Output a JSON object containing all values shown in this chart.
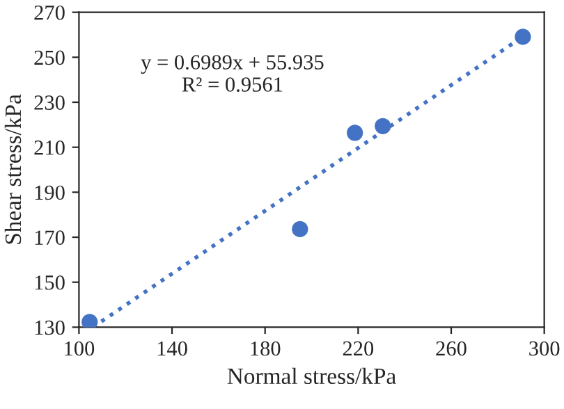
{
  "chart_data": {
    "type": "scatter",
    "xlabel": "Normal stress/kPa",
    "ylabel": "Shear stress/kPa",
    "annotations": [
      "y = 0.6989x + 55.935\nR² = 0.9561"
    ],
    "xlim": [
      100,
      300
    ],
    "xticks": [
      100,
      140,
      180,
      220,
      260,
      300
    ],
    "ylim": [
      130,
      270
    ],
    "yticks": [
      130,
      150,
      170,
      190,
      210,
      230,
      250,
      270
    ],
    "grid": false,
    "marker": "circle",
    "series": [
      {
        "color": "#4472c4",
        "x": [
          104.6,
          195,
          218.6,
          230.6,
          290.8
        ],
        "values": [
          132.3,
          173.6,
          216.4,
          219.4,
          259.1
        ]
      },
      {
        "type": "line",
        "color": "#4472c4",
        "line_style": "dotted",
        "marker": "none",
        "x": [
          106,
          291
        ],
        "values": [
          130.0,
          259.3
        ]
      }
    ]
  }
}
